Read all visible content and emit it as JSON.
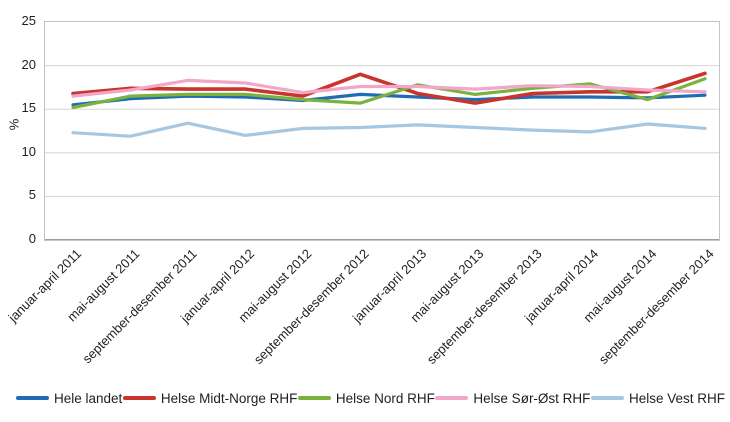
{
  "chart_data": {
    "type": "line",
    "title": "",
    "xlabel": "",
    "ylabel": "%",
    "ylim": [
      0,
      25
    ],
    "yticks": [
      0,
      5,
      10,
      15,
      20,
      25
    ],
    "grid": true,
    "legend_position": "bottom",
    "categories": [
      "januar-april 2011",
      "mai-august 2011",
      "september-desember 2011",
      "januar-april 2012",
      "mai-august 2012",
      "september-desember 2012",
      "januar-april 2013",
      "mai-august 2013",
      "september-desember 2013",
      "januar-april 2014",
      "mai-august 2014",
      "september-desember 2014"
    ],
    "series": [
      {
        "name": "Hele landet",
        "color": "#1F6CB4",
        "values": [
          15.5,
          16.2,
          16.5,
          16.4,
          16.0,
          16.7,
          16.4,
          16.1,
          16.4,
          16.4,
          16.3,
          16.6
        ]
      },
      {
        "name": "Helse Midt-Norge RHF",
        "color": "#C9342C",
        "values": [
          16.8,
          17.4,
          17.3,
          17.3,
          16.5,
          19.0,
          16.8,
          15.7,
          16.8,
          17.0,
          17.0,
          19.1
        ]
      },
      {
        "name": "Helse Nord RHF",
        "color": "#7AB13F",
        "values": [
          15.2,
          16.5,
          16.7,
          16.7,
          16.1,
          15.7,
          17.8,
          16.7,
          17.4,
          17.9,
          16.1,
          18.5
        ]
      },
      {
        "name": "Helse Sør-Øst RHF",
        "color": "#F2A6C9",
        "values": [
          16.5,
          17.2,
          18.3,
          18.0,
          16.9,
          17.6,
          17.6,
          17.3,
          17.7,
          17.6,
          17.2,
          17.0
        ]
      },
      {
        "name": "Helse Vest RHF",
        "color": "#A6C7E2",
        "values": [
          12.3,
          11.9,
          13.4,
          12.0,
          12.8,
          12.9,
          13.2,
          12.9,
          12.6,
          12.4,
          13.3,
          12.8
        ]
      }
    ],
    "colors": {
      "gridline": "#d6d6d6",
      "axis_line": "#9d9d9d",
      "plot_border": "#c3c3c3"
    }
  }
}
